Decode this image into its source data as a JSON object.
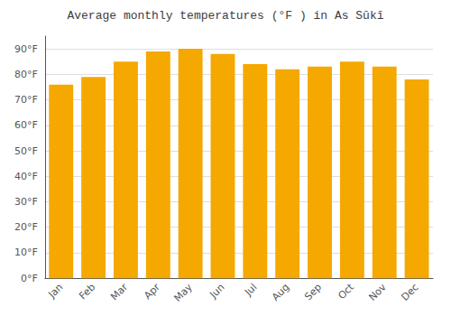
{
  "chart_data": {
    "type": "bar",
    "title": "Average monthly temperatures (°F ) in As Sūkī",
    "categories": [
      "Jan",
      "Feb",
      "Mar",
      "Apr",
      "May",
      "Jun",
      "Jul",
      "Aug",
      "Sep",
      "Oct",
      "Nov",
      "Dec"
    ],
    "values": [
      76,
      79,
      85,
      89,
      90,
      88,
      84,
      82,
      83,
      85,
      83,
      78
    ],
    "color": "#F5A800",
    "ylim": [
      0,
      95
    ],
    "yticks": [
      {
        "value": 0,
        "label": "0°F"
      },
      {
        "value": 10,
        "label": "10°F"
      },
      {
        "value": 20,
        "label": "20°F"
      },
      {
        "value": 30,
        "label": "30°F"
      },
      {
        "value": 40,
        "label": "40°F"
      },
      {
        "value": 50,
        "label": "50°F"
      },
      {
        "value": 60,
        "label": "60°F"
      },
      {
        "value": 70,
        "label": "70°F"
      },
      {
        "value": 80,
        "label": "80°F"
      },
      {
        "value": 90,
        "label": "90°F"
      }
    ],
    "grid": true
  }
}
